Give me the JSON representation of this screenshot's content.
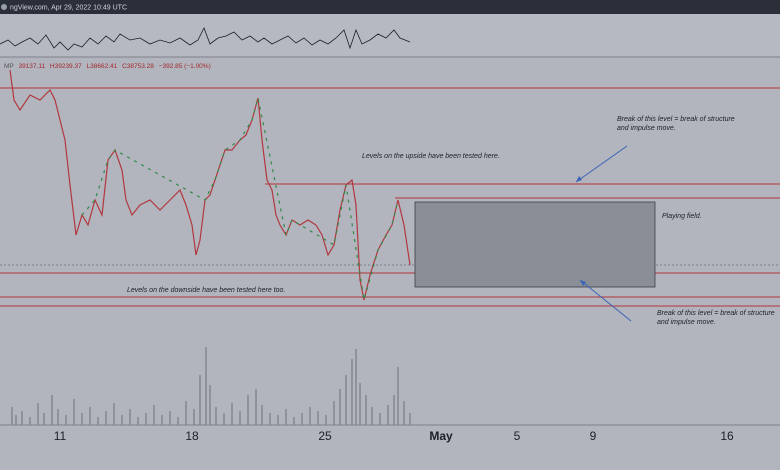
{
  "header": {
    "source": "ngView.com, Apr 29, 2022 10:49 UTC"
  },
  "ohlc": {
    "symbol": "MP",
    "open": "39137.11",
    "high": "H39239.37",
    "low": "L38662.41",
    "close": "C38753.28",
    "change": "−392.85 (−1.00%)"
  },
  "annotations": [
    {
      "lines": [
        "Break of this level = break of structure",
        "and impulse move."
      ]
    },
    {
      "lines": [
        "Levels on the upside have been tested here."
      ]
    },
    {
      "lines": [
        "Playing field."
      ]
    },
    {
      "lines": [
        "Levels on the downside have been tested here too."
      ]
    },
    {
      "lines": [
        "Break of this level = break of structure",
        "and impulse move."
      ]
    }
  ],
  "x_axis": {
    "labels": [
      "11",
      "18",
      "25",
      "May",
      "5",
      "9",
      "16"
    ]
  }
}
